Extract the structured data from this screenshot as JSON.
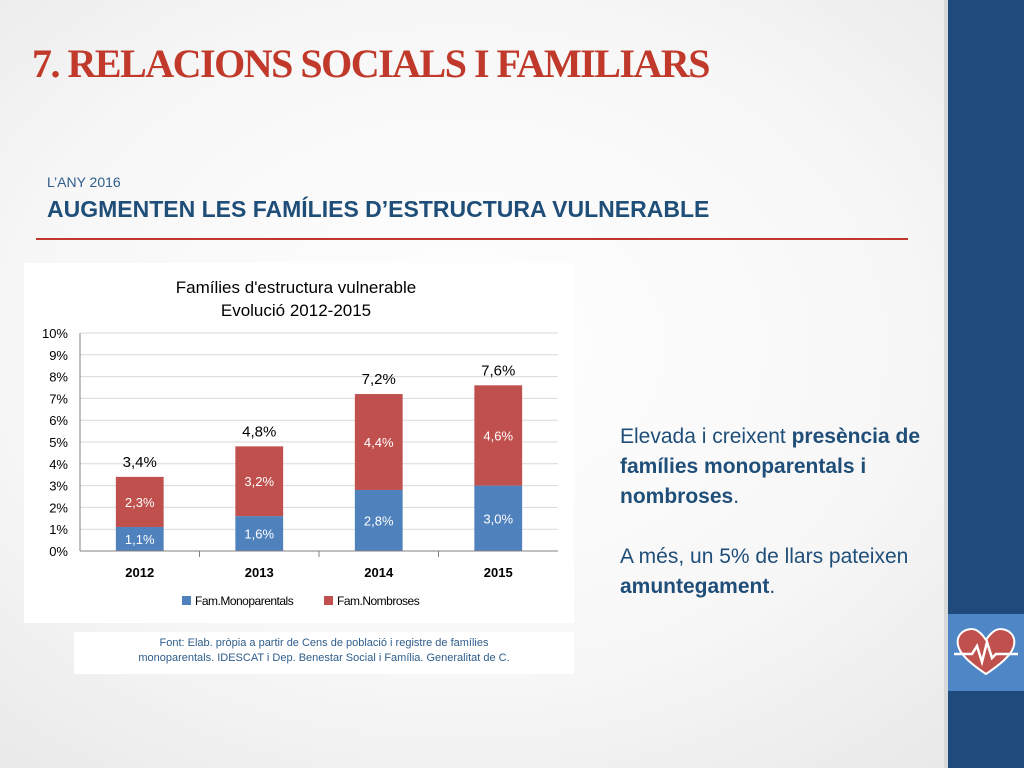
{
  "slide": {
    "title": "7. RELACIONS SOCIALS I FAMILIARS",
    "kicker": "L’ANY 2016",
    "subtitle": "AUGMENTEN LES FAMÍLIES D’ESTRUCTURA VULNERABLE"
  },
  "chart_data": {
    "type": "bar",
    "stacked": true,
    "title": "Famílies d'estructura vulnerable",
    "subtitle": "Evolució 2012-2015",
    "categories": [
      "2012",
      "2013",
      "2014",
      "2015"
    ],
    "series": [
      {
        "name": "Fam.Monoparentals",
        "values": [
          1.1,
          1.6,
          2.8,
          3.0
        ],
        "labels": [
          "1,1%",
          "1,6%",
          "2,8%",
          "3,0%"
        ],
        "color": "#4f81bd"
      },
      {
        "name": "Fam.Nombroses",
        "values": [
          2.3,
          3.2,
          4.4,
          4.6
        ],
        "labels": [
          "2,3%",
          "3,2%",
          "4,4%",
          "4,6%"
        ],
        "color": "#c0504d"
      }
    ],
    "totals": [
      3.4,
      4.8,
      7.2,
      7.6
    ],
    "total_labels": [
      "3,4%",
      "4,8%",
      "7,2%",
      "7,6%"
    ],
    "ylim": [
      0,
      10
    ],
    "yticks": [
      "0%",
      "1%",
      "2%",
      "3%",
      "4%",
      "5%",
      "6%",
      "7%",
      "8%",
      "9%",
      "10%"
    ],
    "grid": true,
    "legend": "bottom"
  },
  "source": {
    "line1": "Font: Elab. pròpia a partir de Cens de població i registre de famílies",
    "line2": "monoparentals. IDESCAT i Dep. Benestar Social i Família. Generalitat de C."
  },
  "body": {
    "p1_a": "Elevada i creixent ",
    "p1_b": "presència de famílies monoparentals i nombroses",
    "p1_c": ".",
    "p2_a": "A més, un 5% de llars pateixen ",
    "p2_b": "amuntegament",
    "p2_c": "."
  },
  "icons": {
    "sidebar": "heart-pulse-icon"
  },
  "colors": {
    "accent": "#c0392b",
    "sidebar": "#1f4a7c",
    "text": "#1f4e79"
  }
}
